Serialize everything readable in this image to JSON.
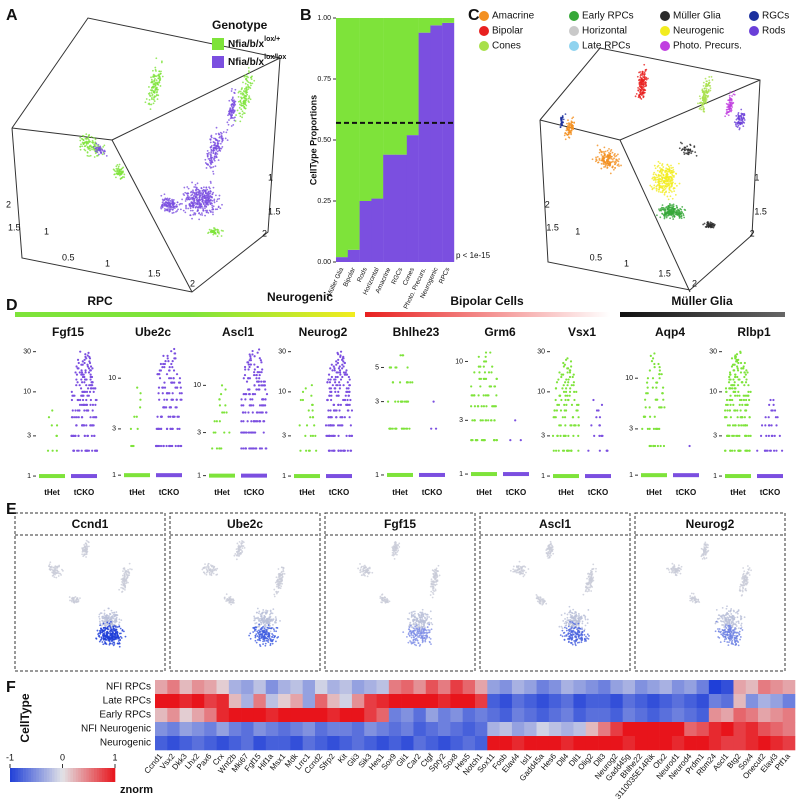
{
  "panel_labels": [
    "A",
    "B",
    "C",
    "D",
    "E",
    "F"
  ],
  "panel_a": {
    "legend_title": "Genotype",
    "legend": [
      {
        "name": "Nfia/b/x",
        "superscript": "lox/+",
        "color": "#7ee33a"
      },
      {
        "name": "Nfia/b/x",
        "superscript": "lox/lox",
        "color": "#7b4fe0"
      }
    ],
    "axis_ticks": [
      "2",
      "1.5",
      "1",
      "0.5",
      "1",
      "1.5",
      "2",
      "1",
      "1.5",
      "2"
    ]
  },
  "panel_b": {
    "type": "bar",
    "stacked": true,
    "ylabel": "CellType Proportions",
    "categories": [
      "Müller Glia",
      "Bipolar",
      "Rods",
      "Horizontal",
      "Amacrine",
      "RGCs",
      "Cones",
      "Photo. Precurs.",
      "Neurogenic",
      "RPCs"
    ],
    "series": [
      {
        "color": "#7b4fe0",
        "values": [
          0.02,
          0.05,
          0.25,
          0.26,
          0.44,
          0.44,
          0.52,
          0.94,
          0.97,
          0.98
        ]
      },
      {
        "color": "#7ee33a",
        "values": [
          0.98,
          0.95,
          0.75,
          0.74,
          0.56,
          0.56,
          0.48,
          0.06,
          0.03,
          0.02
        ]
      }
    ],
    "ylim": [
      0,
      1
    ],
    "yticks": [
      {
        "value": 0,
        "label": "0.00"
      },
      {
        "value": 0.25,
        "label": "0.25"
      },
      {
        "value": 0.5,
        "label": "0.50"
      },
      {
        "value": 0.75,
        "label": "0.75"
      },
      {
        "value": 1,
        "label": "1.00"
      }
    ],
    "reference_line": 0.57,
    "annotation": "p < 1e-15"
  },
  "panel_c": {
    "legend": [
      {
        "name": "Amacrine",
        "color": "#f39021"
      },
      {
        "name": "Bipolar",
        "color": "#e8201f"
      },
      {
        "name": "Cones",
        "color": "#a8e04a"
      },
      {
        "name": "Early RPCs",
        "color": "#36a838"
      },
      {
        "name": "Horizontal",
        "color": "#c9c9c9"
      },
      {
        "name": "Late RPCs",
        "color": "#8fd3ef"
      },
      {
        "name": "Müller Glia",
        "color": "#2b2b2b"
      },
      {
        "name": "Neurogenic",
        "color": "#f2ec1f"
      },
      {
        "name": "Photo. Precurs.",
        "color": "#c03fe0"
      },
      {
        "name": "RGCs",
        "color": "#1b2f9e"
      },
      {
        "name": "Rods",
        "color": "#6a3fd8"
      }
    ],
    "axis_ticks": [
      "2",
      "1.5",
      "1",
      "0.5",
      "1",
      "1.5",
      "2",
      "1",
      "1.5",
      "2"
    ]
  },
  "panel_d": {
    "groups": [
      "RPC",
      "Neurogenic",
      "Bipolar Cells",
      "Müller Glia"
    ],
    "x_labels": [
      "tHet",
      "tCKO"
    ],
    "genes": [
      {
        "name": "Fgf15",
        "ylim": [
          0.85,
          36
        ],
        "yticks": [
          1,
          3,
          10,
          30
        ]
      },
      {
        "name": "Ube2c",
        "ylim": [
          0.85,
          22
        ],
        "yticks": [
          1,
          3,
          10
        ]
      },
      {
        "name": "Ascl1",
        "ylim": [
          0.85,
          28
        ],
        "yticks": [
          1,
          3,
          10
        ]
      },
      {
        "name": "Neurog2",
        "ylim": [
          0.85,
          36
        ],
        "yticks": [
          1,
          3,
          10,
          30
        ]
      },
      {
        "name": "Bhlhe23",
        "ylim": [
          0.9,
          7
        ],
        "yticks": [
          1,
          3,
          5
        ]
      },
      {
        "name": "Grm6",
        "ylim": [
          0.85,
          14
        ],
        "yticks": [
          1,
          3,
          10
        ]
      },
      {
        "name": "Vsx1",
        "ylim": [
          0.85,
          36
        ],
        "yticks": [
          1,
          3,
          10,
          30
        ]
      },
      {
        "name": "Aqp4",
        "ylim": [
          0.85,
          22
        ],
        "yticks": [
          1,
          3,
          10
        ]
      },
      {
        "name": "Rlbp1",
        "ylim": [
          0.85,
          36
        ],
        "yticks": [
          1,
          3,
          10,
          30
        ]
      }
    ]
  },
  "panel_e": {
    "genes": [
      "Ccnd1",
      "Ube2c",
      "Fgf15",
      "Ascl1",
      "Neurog2"
    ]
  },
  "panel_f": {
    "type": "heatmap",
    "ylabel": "CellType",
    "rows": [
      "NFI RPCs",
      "Late RPCs",
      "Early RPCs",
      "NFI Neurogenic",
      "Neurogenic"
    ],
    "columns": [
      "Ccnd1",
      "Vsx2",
      "Dkk3",
      "Lhx2",
      "Pax6",
      "Crx",
      "Wnt2b",
      "Mki67",
      "Fgf15",
      "Hif1a",
      "Msx1",
      "Mdk",
      "Lrrc1",
      "Ccnd2",
      "Sfrp2",
      "Kit",
      "Gli3",
      "Sik3",
      "Hes1",
      "Sox9",
      "Gli1",
      "Car2",
      "Ctgf",
      "Spry2",
      "Sox8",
      "Hes5",
      "Notch1",
      "Sox11",
      "Fosb",
      "Elavl4",
      "Isl1",
      "Gadd45a",
      "Hes6",
      "Dll4",
      "Dll1",
      "Olig2",
      "Dll3",
      "Neurog2",
      "Gadd45g",
      "Bhlhe22",
      "3110035E14Rik",
      "Otx2",
      "Neurod1",
      "Neurod4",
      "Prdm1",
      "Rbm24",
      "Ascl1",
      "Btg2",
      "Sox4",
      "Onecut2",
      "Elavl3",
      "Ptf1a"
    ],
    "values": [
      [
        0.3,
        0.5,
        0.2,
        0.4,
        0.3,
        0.1,
        -0.3,
        -0.4,
        -0.2,
        -0.5,
        -0.3,
        -0.2,
        -0.4,
        -0.1,
        -0.3,
        -0.2,
        -0.4,
        -0.3,
        -0.2,
        0.5,
        0.6,
        0.4,
        0.7,
        0.5,
        0.8,
        0.6,
        0.3,
        -0.4,
        -0.5,
        -0.3,
        -0.4,
        -0.6,
        -0.5,
        -0.3,
        -0.4,
        -0.5,
        -0.6,
        -0.4,
        -0.3,
        -0.5,
        -0.4,
        -0.3,
        -0.5,
        -0.4,
        -0.6,
        -1,
        -0.9,
        0.3,
        0.2,
        0.5,
        0.4,
        0.3
      ],
      [
        1,
        1,
        0.9,
        1,
        0.8,
        0.9,
        0.2,
        -0.3,
        0.5,
        -0.2,
        0.1,
        0.3,
        -0.4,
        0.6,
        0.2,
        -0.1,
        0.4,
        0.8,
        0.9,
        1,
        1,
        1,
        1,
        0.9,
        1,
        1,
        0.8,
        -0.8,
        -0.9,
        -0.7,
        -0.8,
        -0.9,
        -0.8,
        -0.7,
        -0.9,
        -0.8,
        -0.8,
        -0.9,
        -0.7,
        -0.8,
        -0.9,
        -0.8,
        -0.7,
        -0.8,
        -0.9,
        -0.6,
        -0.7,
        0.2,
        -0.5,
        -0.3,
        -0.4,
        -0.6
      ],
      [
        0.2,
        0.4,
        0.1,
        0.3,
        0.5,
        0.9,
        1,
        1,
        1,
        0.9,
        1,
        1,
        1,
        1,
        0.9,
        1,
        1,
        0.8,
        0.6,
        -0.6,
        -0.5,
        -0.7,
        -0.4,
        -0.6,
        -0.5,
        -0.7,
        -0.6,
        -0.7,
        -0.8,
        -0.6,
        -0.7,
        -0.8,
        -0.7,
        -0.6,
        -0.8,
        -0.7,
        -0.7,
        -0.8,
        -0.6,
        -0.7,
        -0.8,
        -0.7,
        -0.6,
        -0.7,
        -0.8,
        0.4,
        0.3,
        0.6,
        0.5,
        0.3,
        0.4,
        0.5
      ],
      [
        -0.5,
        -0.6,
        -0.4,
        -0.5,
        -0.6,
        -0.4,
        -0.6,
        -0.7,
        -0.5,
        -0.6,
        -0.7,
        -0.6,
        -0.5,
        -0.7,
        -0.6,
        -0.6,
        -0.7,
        -0.5,
        -0.6,
        -0.7,
        -0.6,
        -0.8,
        -0.7,
        -0.6,
        -0.7,
        -0.8,
        -0.7,
        -0.3,
        -0.2,
        -0.4,
        -0.3,
        -0.1,
        -0.2,
        -0.3,
        -0.2,
        0.2,
        0.5,
        0.8,
        1,
        1,
        1,
        1,
        1,
        0.6,
        0.7,
        0.9,
        1,
        0.8,
        0.9,
        0.7,
        0.6,
        0.5
      ],
      [
        -0.8,
        -0.9,
        -0.8,
        -0.7,
        -0.8,
        -0.9,
        -0.8,
        -0.7,
        -0.9,
        -0.8,
        -0.8,
        -0.9,
        -0.7,
        -0.8,
        -0.9,
        -0.8,
        -0.7,
        -0.8,
        -0.9,
        -0.8,
        -0.9,
        -0.7,
        -0.8,
        -0.9,
        -0.8,
        -0.7,
        -0.8,
        1,
        1,
        0.9,
        1,
        1,
        1,
        0.9,
        1,
        1,
        1,
        1,
        0.9,
        1,
        1,
        1,
        0.9,
        1,
        1,
        0.9,
        0.8,
        0.8,
        0.9,
        1,
        0.9,
        0.8
      ]
    ],
    "colorbar": {
      "lim": [
        -1,
        1
      ],
      "ticks": [
        -1,
        0,
        1
      ],
      "label": "znorm"
    }
  }
}
